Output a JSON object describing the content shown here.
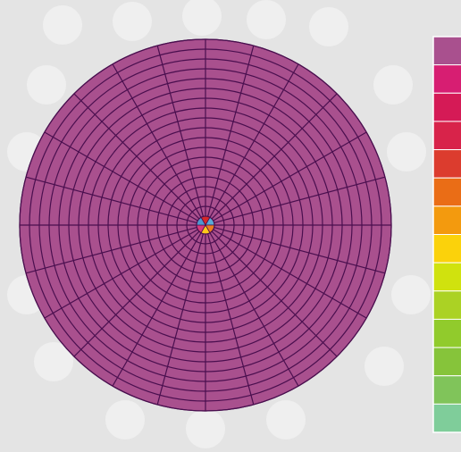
{
  "chart_data": {
    "type": "polar-heatmap",
    "title": "",
    "grid": true,
    "radial_rings": 18,
    "angular_sectors": 24,
    "dominant_fill": "#a9508e",
    "grid_line_color": "#4a0f4f",
    "center_cells": [
      {
        "sector": "top",
        "fill": "#d62728"
      },
      {
        "sector": "upper-right",
        "fill": "#5aa9d6"
      },
      {
        "sector": "lower-right",
        "fill": "#ee7d1e"
      },
      {
        "sector": "bottom",
        "fill": "#ffc91a"
      },
      {
        "sector": "lower-left",
        "fill": "#d93a7a"
      },
      {
        "sector": "upper-left",
        "fill": "#4f97cf"
      }
    ],
    "angle_tick_labels": [
      "",
      "",
      "",
      "",
      "",
      "",
      "",
      "",
      "",
      "",
      "",
      "",
      "",
      "",
      "",
      "",
      "",
      "",
      "",
      "",
      "",
      "",
      "",
      ""
    ],
    "colorbar": {
      "placement": "right",
      "colors": [
        "#a9508e",
        "#d71e72",
        "#d51a56",
        "#d8234a",
        "#dc3c2e",
        "#ea6d16",
        "#f39a0e",
        "#fbd20b",
        "#d0e20e",
        "#abd224",
        "#91cb2c",
        "#86c43a",
        "#80c45a",
        "#7fcd9a"
      ],
      "tick_labels": []
    }
  }
}
